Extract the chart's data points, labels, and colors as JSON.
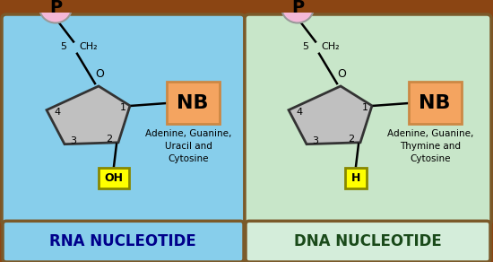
{
  "outer_bg": "#8B4513",
  "left_panel_color": "#87CEEB",
  "right_panel_color": "#C8E6C9",
  "label_left_bg": "#87CEEB",
  "label_right_bg": "#D4EDDA",
  "pentagon_color": "#C0C0C0",
  "pentagon_edge": "#333333",
  "p_circle_color": "#F4B8D8",
  "p_circle_edge": "#999999",
  "nb_box_color": "#F4A460",
  "nb_box_edge": "#CC8844",
  "oh_box_color": "#FFFF00",
  "oh_box_edge": "#888800",
  "left_title": "RNA NUCLEOTIDE",
  "right_title": "DNA NUCLEOTIDE",
  "left_bases": "Adenine, Guanine,\nUracil and\nCytosine",
  "right_bases": "Adenine, Guanine,\nThymine and\nCytosine",
  "left_oh": "OH",
  "right_h": "H",
  "nb_label": "NB",
  "p_label": "P",
  "title_left_color": "#00008B",
  "title_right_color": "#1a4a1a"
}
